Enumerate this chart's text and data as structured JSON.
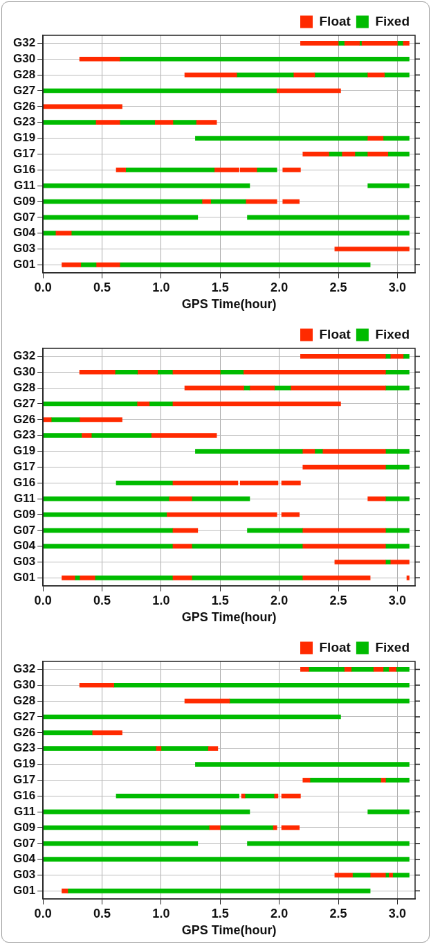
{
  "chart_data": [
    {
      "type": "bar",
      "orientation": "horizontal",
      "xlabel": "GPS Time(hour)",
      "legend": "top right",
      "grid": true,
      "categories": [
        "G32",
        "G30",
        "G28",
        "G27",
        "G26",
        "G23",
        "G19",
        "G17",
        "G16",
        "G11",
        "G09",
        "G07",
        "G04",
        "G03",
        "G01"
      ],
      "xlim": [
        0,
        3.15
      ],
      "xticks": [
        {
          "value": 0,
          "label": "0.0"
        },
        {
          "value": 0.5,
          "label": "0.5"
        },
        {
          "value": 1,
          "label": "1.0"
        },
        {
          "value": 1.5,
          "label": "1.5"
        },
        {
          "value": 2,
          "label": "2.0"
        },
        {
          "value": 2.5,
          "label": "2.5"
        },
        {
          "value": 3,
          "label": "3.0"
        }
      ],
      "series": [
        {
          "name": "Float",
          "color": "#ff2a00",
          "base": [
            2.18,
            0.31,
            1.2,
            1.98,
            0,
            0.45,
            2.75,
            2.2,
            0.62,
            null,
            1.35,
            null,
            0.11,
            2.47,
            0.16
          ],
          "values": [
            0.32,
            0.34,
            0.44,
            0.54,
            0.67,
            0.2,
            0.13,
            0.22,
            0.08,
            null,
            0.07,
            null,
            0.13,
            0.63,
            0.16
          ]
        },
        {
          "name": "Fixed",
          "color": "#00bb00",
          "base": [
            2.5,
            0.65,
            1.64,
            0,
            null,
            0,
            1.29,
            2.42,
            0.7,
            0,
            0,
            0,
            0,
            null,
            0.32
          ],
          "values": [
            0.05,
            2.45,
            0.48,
            1.98,
            null,
            0.45,
            1.46,
            0.11,
            0.75,
            1.75,
            1.35,
            1.31,
            0.11,
            null,
            0.13
          ]
        },
        {
          "color": "#ff2a00",
          "base": [
            2.55,
            null,
            2.12,
            null,
            null,
            0.95,
            null,
            2.53,
            1.45,
            null,
            1.72,
            null,
            null,
            null,
            0.45
          ],
          "values": [
            0.13,
            null,
            0.18,
            null,
            null,
            0.15,
            null,
            0.11,
            0.21,
            null,
            0.26,
            null,
            null,
            null,
            0.2
          ]
        },
        {
          "color": "#ff2a00",
          "base": [
            2.7,
            null,
            2.75,
            null,
            null,
            1.3,
            null,
            2.75,
            1.67,
            null,
            2.03,
            null,
            null,
            null,
            null
          ],
          "values": [
            0.3,
            null,
            0.14,
            null,
            null,
            0.17,
            null,
            0.17,
            0.14,
            null,
            0.14,
            null,
            null,
            null,
            null
          ]
        },
        {
          "color": "#ff2a00",
          "base": [
            3.05,
            null,
            null,
            null,
            null,
            null,
            null,
            null,
            2.03,
            null,
            null,
            null,
            null,
            null,
            null
          ],
          "values": [
            0.05,
            null,
            null,
            null,
            null,
            null,
            null,
            null,
            0.15,
            null,
            null,
            null,
            null,
            null,
            null
          ]
        },
        {
          "color": "#00bb00",
          "base": [
            2.68,
            null,
            2.3,
            null,
            null,
            0.65,
            2.88,
            2.64,
            1.81,
            2.75,
            1.42,
            1.73,
            0.24,
            null,
            0.65
          ],
          "values": [
            0.02,
            null,
            0.45,
            null,
            null,
            0.3,
            0.22,
            0.11,
            0.17,
            0.35,
            0.3,
            1.37,
            2.86,
            null,
            2.12
          ]
        },
        {
          "color": "#00bb00",
          "base": [
            3.0,
            null,
            2.89,
            null,
            null,
            1.1,
            null,
            2.92,
            null,
            null,
            null,
            null,
            null,
            null,
            null
          ],
          "values": [
            0.05,
            null,
            0.21,
            null,
            null,
            0.2,
            null,
            0.18,
            null,
            null,
            null,
            null,
            null,
            null,
            null
          ]
        }
      ]
    },
    {
      "type": "bar",
      "orientation": "horizontal",
      "xlabel": "GPS Time(hour)",
      "legend": "top right",
      "grid": true,
      "categories": [
        "G32",
        "G30",
        "G28",
        "G27",
        "G26",
        "G23",
        "G19",
        "G17",
        "G16",
        "G11",
        "G09",
        "G07",
        "G04",
        "G03",
        "G01"
      ],
      "xlim": [
        0,
        3.15
      ],
      "xticks": [
        {
          "value": 0,
          "label": "0.0"
        },
        {
          "value": 0.5,
          "label": "0.5"
        },
        {
          "value": 1,
          "label": "1.0"
        },
        {
          "value": 1.5,
          "label": "1.5"
        },
        {
          "value": 2,
          "label": "2.0"
        },
        {
          "value": 2.5,
          "label": "2.5"
        },
        {
          "value": 3,
          "label": "3.0"
        }
      ],
      "series": [
        {
          "name": "Float",
          "color": "#ff2a00",
          "base": [
            2.18,
            0.31,
            1.2,
            0.8,
            0,
            0.33,
            2.2,
            2.2,
            1.1,
            1.07,
            1.05,
            1.1,
            1.1,
            2.47,
            0.16
          ],
          "values": [
            0.72,
            0.3,
            0.5,
            0.1,
            0.07,
            0.08,
            0.1,
            0.7,
            0.55,
            0.19,
            0.93,
            0.21,
            0.16,
            0.43,
            0.11
          ]
        },
        {
          "name": "Fixed",
          "color": "#00bb00",
          "base": [
            2.9,
            0.61,
            1.7,
            0,
            0.07,
            0,
            1.29,
            2.9,
            0.62,
            0,
            0,
            0,
            0,
            2.9,
            0.27
          ],
          "values": [
            0.04,
            0.19,
            0.05,
            0.8,
            0.24,
            0.33,
            0.91,
            0.2,
            0.48,
            1.07,
            1.05,
            1.1,
            1.1,
            0.04,
            0.04
          ]
        },
        {
          "color": "#ff2a00",
          "base": [
            2.94,
            0.8,
            1.75,
            1.1,
            0.31,
            0.92,
            2.37,
            null,
            1.67,
            2.75,
            2.02,
            2.2,
            2.2,
            2.94,
            0.31
          ],
          "values": [
            0.11,
            0.17,
            0.21,
            1.42,
            0.36,
            0.55,
            0.53,
            null,
            0.32,
            0.15,
            0.15,
            0.7,
            0.7,
            0.16,
            0.13
          ]
        },
        {
          "color": "#ff2a00",
          "base": [
            null,
            1.1,
            2.1,
            null,
            null,
            null,
            null,
            null,
            2.02,
            null,
            null,
            null,
            null,
            null,
            1.1
          ],
          "values": [
            null,
            0.4,
            0.8,
            null,
            null,
            null,
            null,
            null,
            0.16,
            null,
            null,
            null,
            null,
            null,
            0.16
          ]
        },
        {
          "color": "#ff2a00",
          "base": [
            null,
            1.7,
            null,
            null,
            null,
            null,
            null,
            null,
            null,
            null,
            null,
            null,
            null,
            null,
            2.2
          ],
          "values": [
            null,
            1.2,
            null,
            null,
            null,
            null,
            null,
            null,
            null,
            null,
            null,
            null,
            null,
            null,
            0.57
          ]
        },
        {
          "color": "#ff2a00",
          "base": [
            null,
            null,
            null,
            null,
            null,
            null,
            null,
            null,
            null,
            null,
            null,
            null,
            null,
            null,
            3.08
          ],
          "values": [
            null,
            null,
            null,
            null,
            null,
            null,
            null,
            null,
            null,
            null,
            null,
            null,
            null,
            null,
            0.02
          ]
        },
        {
          "color": "#00bb00",
          "base": [
            3.05,
            0.97,
            1.96,
            0.9,
            null,
            0.41,
            2.3,
            null,
            null,
            1.26,
            null,
            1.73,
            1.26,
            null,
            0.44
          ],
          "values": [
            0.05,
            0.13,
            0.14,
            0.2,
            null,
            0.51,
            0.07,
            null,
            null,
            0.49,
            null,
            0.47,
            0.94,
            null,
            0.66
          ]
        },
        {
          "color": "#00bb00",
          "base": [
            null,
            1.5,
            2.9,
            null,
            null,
            null,
            2.9,
            null,
            null,
            2.9,
            null,
            2.9,
            2.9,
            null,
            1.26
          ],
          "values": [
            null,
            0.2,
            0.2,
            null,
            null,
            null,
            0.2,
            null,
            null,
            0.2,
            null,
            0.2,
            0.2,
            null,
            0.94
          ]
        },
        {
          "color": "#00bb00",
          "base": [
            null,
            2.9,
            null,
            null,
            null,
            null,
            null,
            null,
            null,
            null,
            null,
            null,
            null,
            null,
            null
          ],
          "values": [
            null,
            0.2,
            null,
            null,
            null,
            null,
            null,
            null,
            null,
            null,
            null,
            null,
            null,
            null,
            null
          ]
        }
      ]
    },
    {
      "type": "bar",
      "orientation": "horizontal",
      "xlabel": "GPS Time(hour)",
      "legend": "top right",
      "grid": true,
      "categories": [
        "G32",
        "G30",
        "G28",
        "G27",
        "G26",
        "G23",
        "G19",
        "G17",
        "G16",
        "G11",
        "G09",
        "G07",
        "G04",
        "G03",
        "G01"
      ],
      "xlim": [
        0,
        3.15
      ],
      "xticks": [
        {
          "value": 0,
          "label": "0.0"
        },
        {
          "value": 0.5,
          "label": "0.5"
        },
        {
          "value": 1,
          "label": "1.0"
        },
        {
          "value": 1.5,
          "label": "1.5"
        },
        {
          "value": 2,
          "label": "2.0"
        },
        {
          "value": 2.5,
          "label": "2.5"
        },
        {
          "value": 3,
          "label": "3.0"
        }
      ],
      "series": [
        {
          "name": "Float",
          "color": "#ff2a00",
          "base": [
            2.18,
            0.31,
            1.2,
            null,
            0.42,
            0.96,
            null,
            2.2,
            1.68,
            null,
            1.41,
            null,
            null,
            2.47,
            0.16
          ],
          "values": [
            0.07,
            0.29,
            0.38,
            null,
            0.25,
            0.04,
            null,
            0.06,
            0.03,
            null,
            0.09,
            null,
            null,
            0.15,
            0.05
          ]
        },
        {
          "name": "Fixed",
          "color": "#00bb00",
          "base": [
            2.25,
            0.6,
            1.58,
            0,
            0,
            0,
            1.29,
            2.26,
            0.62,
            0,
            0,
            0,
            0,
            2.62,
            0.21
          ],
          "values": [
            0.3,
            2.5,
            1.52,
            2.52,
            0.42,
            0.96,
            1.81,
            0.6,
            1.04,
            1.75,
            1.41,
            1.31,
            3.1,
            0.15,
            2.56
          ]
        },
        {
          "color": "#ff2a00",
          "base": [
            2.55,
            null,
            null,
            null,
            null,
            1.4,
            null,
            2.86,
            1.96,
            null,
            1.95,
            null,
            null,
            2.77,
            null
          ],
          "values": [
            0.06,
            null,
            null,
            null,
            null,
            0.08,
            null,
            0.04,
            0.03,
            null,
            0.03,
            null,
            null,
            0.13,
            null
          ]
        },
        {
          "color": "#ff2a00",
          "base": [
            2.8,
            null,
            null,
            null,
            null,
            null,
            null,
            null,
            2.02,
            null,
            2.02,
            null,
            null,
            2.93,
            null
          ],
          "values": [
            0.08,
            null,
            null,
            null,
            null,
            null,
            null,
            null,
            0.16,
            null,
            0.15,
            null,
            null,
            0.03,
            null
          ]
        },
        {
          "color": "#ff2a00",
          "base": [
            2.93,
            null,
            null,
            null,
            null,
            null,
            null,
            null,
            null,
            null,
            null,
            null,
            null,
            null,
            null
          ],
          "values": [
            0.06,
            null,
            null,
            null,
            null,
            null,
            null,
            null,
            null,
            null,
            null,
            null,
            null,
            null,
            null
          ]
        },
        {
          "color": "#00bb00",
          "base": [
            2.61,
            null,
            null,
            null,
            null,
            1.0,
            null,
            2.9,
            1.71,
            2.75,
            1.5,
            1.73,
            null,
            2.9,
            null
          ],
          "values": [
            0.19,
            null,
            null,
            null,
            null,
            0.4,
            null,
            0.2,
            0.25,
            0.35,
            0.45,
            1.37,
            null,
            0.03,
            null
          ]
        },
        {
          "color": "#00bb00",
          "base": [
            2.88,
            null,
            null,
            null,
            null,
            null,
            null,
            null,
            null,
            null,
            null,
            null,
            null,
            2.96,
            null
          ],
          "values": [
            0.05,
            null,
            null,
            null,
            null,
            null,
            null,
            null,
            null,
            null,
            null,
            null,
            null,
            0.14,
            null
          ]
        },
        {
          "color": "#00bb00",
          "base": [
            2.99,
            null,
            null,
            null,
            null,
            null,
            null,
            null,
            null,
            null,
            null,
            null,
            null,
            null,
            null
          ],
          "values": [
            0.11,
            null,
            null,
            null,
            null,
            null,
            null,
            null,
            null,
            null,
            null,
            null,
            null,
            null,
            null
          ]
        }
      ]
    }
  ]
}
